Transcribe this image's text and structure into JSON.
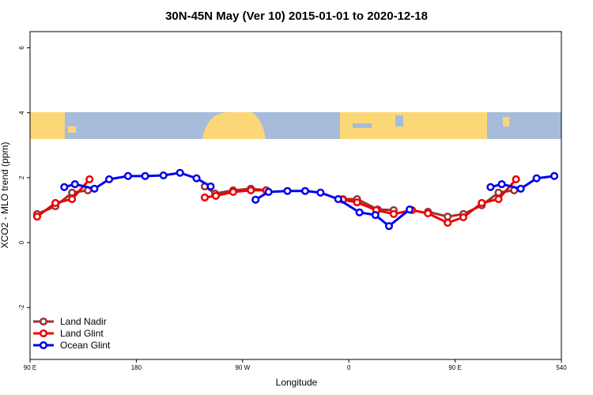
{
  "chart_data": {
    "type": "line",
    "title": "30N-45N May (Ver 10)   2015-01-01 to 2020-12-18",
    "x_label": "Longitude",
    "y_label": "XCO2 - MLO trend (ppm)",
    "xlim": [
      90,
      540
    ],
    "ylim": [
      -3.6,
      6.5
    ],
    "xticks": [
      {
        "value": 90,
        "label": "90 E"
      },
      180,
      {
        "value": 270,
        "label": "90 W"
      },
      {
        "value": 360,
        "label": "0"
      },
      {
        "value": 450,
        "label": "90 E"
      },
      540
    ],
    "yticks": [
      -2,
      0,
      2,
      4,
      6
    ],
    "legend": "bottom-left",
    "series": [
      {
        "name": "Land Nadir",
        "color": "#993333",
        "x": [
          96,
          111.5,
          125.6,
          139,
          null,
          238,
          246.7,
          262,
          277,
          290,
          null,
          355,
          367,
          384.5,
          398,
          null,
          427,
          443.7,
          457,
          472.6,
          486.8,
          500
        ],
        "values": [
          0.88,
          1.12,
          1.54,
          1.61,
          null,
          1.73,
          1.51,
          1.61,
          1.66,
          1.61,
          null,
          1.34,
          1.34,
          1.02,
          1.0,
          null,
          0.95,
          0.8,
          0.88,
          1.15,
          1.54,
          1.61
        ]
      },
      {
        "name": "Land Glint",
        "color": "#ee0000",
        "x": [
          96,
          111.5,
          125.6,
          140.4,
          null,
          238,
          247.4,
          262,
          277,
          290,
          null,
          355,
          367,
          383.2,
          398,
          413.5,
          427,
          443.7,
          457,
          472.6,
          486.8,
          501.6
        ],
        "values": [
          0.8,
          1.22,
          1.34,
          1.95,
          null,
          1.39,
          1.44,
          1.56,
          1.61,
          1.61,
          null,
          1.32,
          1.24,
          1.0,
          0.88,
          1.0,
          0.9,
          0.61,
          0.78,
          1.22,
          1.34,
          1.95
        ]
      },
      {
        "name": "Ocean Glint",
        "color": "#0000ee",
        "x": [
          119,
          128,
          144.5,
          157,
          173,
          187.5,
          203,
          217,
          231,
          243,
          null,
          281,
          292,
          308,
          323,
          336,
          351,
          369,
          382.5,
          394,
          411.5,
          null,
          480,
          489.5,
          505.6,
          519,
          534
        ],
        "values": [
          1.71,
          1.8,
          1.66,
          1.95,
          2.05,
          2.05,
          2.07,
          2.15,
          1.98,
          1.73,
          null,
          1.32,
          1.56,
          1.59,
          1.59,
          1.54,
          1.34,
          0.93,
          0.85,
          0.51,
          1.02,
          null,
          1.71,
          1.8,
          1.66,
          1.98,
          2.05
        ]
      }
    ]
  }
}
